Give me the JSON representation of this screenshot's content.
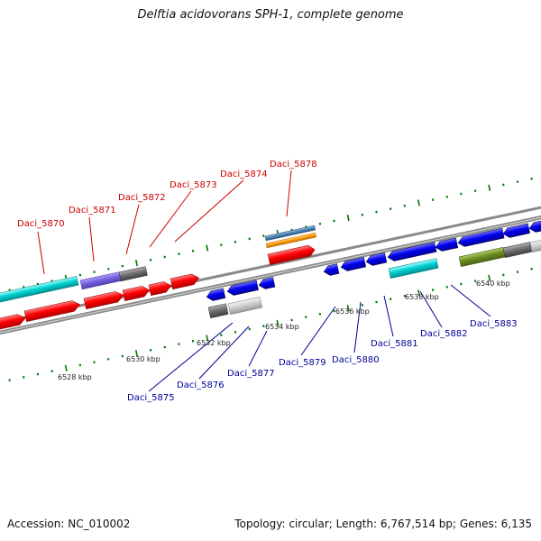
{
  "header": {
    "title": "Delftia acidovorans SPH-1, complete genome"
  },
  "footer": {
    "accession": "Accession: NC_010002",
    "summary": "Topology: circular; Length: 6,767,514 bp; Genes: 6,135"
  },
  "colors": {
    "forward_gene": "#ff0000",
    "reverse_gene": "#0000ee",
    "label_forward": "#cc0000",
    "label_reverse": "#000099",
    "ruler": "#007700",
    "backbone": "#888888"
  },
  "ruler_labels": [
    "6528 kbp",
    "6530 kbp",
    "6532 kbp",
    "6534 kbp",
    "6536 kbp",
    "6538 kbp",
    "6540 kbp"
  ],
  "forward_labels": [
    "Daci_5870",
    "Daci_5871",
    "Daci_5872",
    "Daci_5873",
    "Daci_5874",
    "Daci_5878"
  ],
  "reverse_labels": [
    "Daci_5875",
    "Daci_5876",
    "Daci_5877",
    "Daci_5879",
    "Daci_5880",
    "Daci_5881",
    "Daci_5882",
    "Daci_5883"
  ]
}
